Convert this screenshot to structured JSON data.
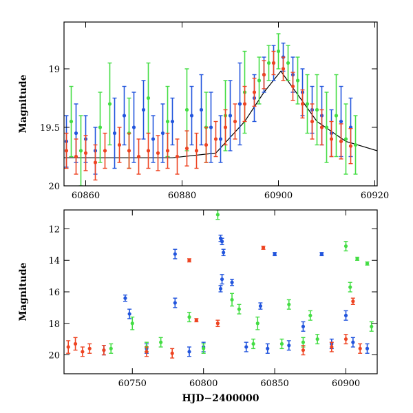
{
  "chart_data": [
    {
      "type": "scatter",
      "title": "",
      "xlabel": "",
      "ylabel": "Magnitude",
      "xlim": [
        60855.5,
        60920.5
      ],
      "ylim": [
        20.0,
        18.6
      ],
      "y_inverted": true,
      "xticks": [
        60860,
        60880,
        60900,
        60920
      ],
      "yticks": [
        19,
        19.5,
        20
      ],
      "ytick_labels": [
        "19",
        "19.5",
        "20"
      ],
      "model_curve": {
        "color": "#000000",
        "x": [
          60855.5,
          60866,
          60878,
          60887,
          60893,
          60897,
          60900.5,
          60904,
          60908,
          60914,
          60920.5
        ],
        "y": [
          19.76,
          19.76,
          19.76,
          19.72,
          19.45,
          19.2,
          19.02,
          19.22,
          19.45,
          19.62,
          19.7
        ]
      },
      "series": [
        {
          "color": "#2255dd",
          "points": [
            [
              60856,
              19.62,
              0.22
            ],
            [
              60858,
              19.55,
              0.25
            ],
            [
              60860,
              19.6,
              0.2
            ],
            [
              60862,
              19.7,
              0.2
            ],
            [
              60866,
              19.55,
              0.3
            ],
            [
              60868,
              19.4,
              0.25
            ],
            [
              60870,
              19.5,
              0.3
            ],
            [
              60872,
              19.35,
              0.25
            ],
            [
              60874,
              19.6,
              0.2
            ],
            [
              60876,
              19.55,
              0.25
            ],
            [
              60878,
              19.45,
              0.2
            ],
            [
              60882,
              19.4,
              0.25
            ],
            [
              60884,
              19.35,
              0.3
            ],
            [
              60886,
              19.5,
              0.3
            ],
            [
              60888,
              19.6,
              0.2
            ],
            [
              60890,
              19.4,
              0.3
            ],
            [
              60892,
              19.3,
              0.35
            ],
            [
              60895,
              19.25,
              0.2
            ],
            [
              60897,
              19.05,
              0.15
            ],
            [
              60899,
              18.95,
              0.15
            ],
            [
              60901,
              18.9,
              0.12
            ],
            [
              60903,
              19.05,
              0.15
            ],
            [
              60905,
              19.2,
              0.2
            ],
            [
              60907,
              19.35,
              0.2
            ],
            [
              60909,
              19.4,
              0.25
            ],
            [
              60911,
              19.55,
              0.2
            ],
            [
              60913,
              19.45,
              0.3
            ],
            [
              60915,
              19.5,
              0.25
            ]
          ]
        },
        {
          "color": "#44dd44",
          "points": [
            [
              60857,
              19.45,
              0.3
            ],
            [
              60859,
              19.7,
              0.3
            ],
            [
              60863,
              19.5,
              0.3
            ],
            [
              60865,
              19.3,
              0.35
            ],
            [
              60869,
              19.55,
              0.3
            ],
            [
              60873,
              19.25,
              0.3
            ],
            [
              60877,
              19.45,
              0.3
            ],
            [
              60881,
              19.35,
              0.35
            ],
            [
              60885,
              19.5,
              0.3
            ],
            [
              60889,
              19.4,
              0.3
            ],
            [
              60893,
              19.2,
              0.35
            ],
            [
              60896,
              19.1,
              0.2
            ],
            [
              60898,
              18.95,
              0.15
            ],
            [
              60900,
              18.85,
              0.15
            ],
            [
              60902,
              18.95,
              0.15
            ],
            [
              60904,
              19.1,
              0.2
            ],
            [
              60906,
              19.3,
              0.25
            ],
            [
              60908,
              19.35,
              0.3
            ],
            [
              60910,
              19.5,
              0.3
            ],
            [
              60912,
              19.4,
              0.35
            ],
            [
              60914,
              19.6,
              0.3
            ],
            [
              60916,
              19.65,
              0.25
            ]
          ]
        },
        {
          "color": "#ee4422",
          "points": [
            [
              60856,
              19.7,
              0.15
            ],
            [
              60858,
              19.75,
              0.15
            ],
            [
              60860,
              19.72,
              0.15
            ],
            [
              60862,
              19.8,
              0.15
            ],
            [
              60864,
              19.7,
              0.15
            ],
            [
              60867,
              19.65,
              0.15
            ],
            [
              60869,
              19.7,
              0.15
            ],
            [
              60871,
              19.75,
              0.15
            ],
            [
              60873,
              19.7,
              0.15
            ],
            [
              60875,
              19.72,
              0.15
            ],
            [
              60877,
              19.7,
              0.15
            ],
            [
              60879,
              19.75,
              0.15
            ],
            [
              60881,
              19.68,
              0.15
            ],
            [
              60883,
              19.7,
              0.15
            ],
            [
              60885,
              19.65,
              0.15
            ],
            [
              60887,
              19.6,
              0.15
            ],
            [
              60889,
              19.5,
              0.15
            ],
            [
              60891,
              19.45,
              0.15
            ],
            [
              60893,
              19.3,
              0.15
            ],
            [
              60895,
              19.2,
              0.12
            ],
            [
              60897,
              19.05,
              0.12
            ],
            [
              60899,
              18.95,
              0.1
            ],
            [
              60901,
              19.0,
              0.1
            ],
            [
              60903,
              19.15,
              0.12
            ],
            [
              60905,
              19.3,
              0.12
            ],
            [
              60907,
              19.45,
              0.15
            ],
            [
              60909,
              19.5,
              0.15
            ],
            [
              60911,
              19.6,
              0.15
            ],
            [
              60913,
              19.62,
              0.15
            ],
            [
              60915,
              19.66,
              0.15
            ]
          ]
        }
      ]
    },
    {
      "type": "scatter",
      "title": "",
      "xlabel": "HJD−2400000",
      "ylabel": "Magnitude",
      "xlim": [
        60702,
        60922
      ],
      "ylim": [
        21.2,
        10.8
      ],
      "y_inverted": true,
      "xticks": [
        60750,
        60800,
        60850,
        60900
      ],
      "yticks": [
        12,
        14,
        16,
        18,
        20
      ],
      "series": [
        {
          "color": "#2255dd",
          "points": [
            [
              60730,
              19.7,
              0.3
            ],
            [
              60745,
              16.4,
              0.2
            ],
            [
              60748,
              17.4,
              0.3
            ],
            [
              60760,
              19.6,
              0.3
            ],
            [
              60780,
              13.6,
              0.3
            ],
            [
              60780,
              16.7,
              0.3
            ],
            [
              60790,
              19.8,
              0.3
            ],
            [
              60800,
              19.5,
              0.3
            ],
            [
              60812,
              12.6,
              0.2
            ],
            [
              60813,
              12.8,
              0.2
            ],
            [
              60814,
              13.5,
              0.2
            ],
            [
              60813,
              15.2,
              0.3
            ],
            [
              60812,
              15.8,
              0.2
            ],
            [
              60820,
              15.4,
              0.2
            ],
            [
              60830,
              19.5,
              0.3
            ],
            [
              60840,
              16.9,
              0.2
            ],
            [
              60845,
              19.6,
              0.3
            ],
            [
              60850,
              13.6,
              0.1
            ],
            [
              60860,
              19.4,
              0.3
            ],
            [
              60870,
              18.2,
              0.3
            ],
            [
              60883,
              13.6,
              0.1
            ],
            [
              60890,
              19.3,
              0.3
            ],
            [
              60900,
              17.5,
              0.3
            ],
            [
              60905,
              19.2,
              0.3
            ],
            [
              60915,
              19.6,
              0.3
            ]
          ]
        },
        {
          "color": "#44dd44",
          "points": [
            [
              60735,
              19.6,
              0.3
            ],
            [
              60750,
              18.0,
              0.4
            ],
            [
              60760,
              19.5,
              0.3
            ],
            [
              60770,
              19.2,
              0.3
            ],
            [
              60790,
              17.6,
              0.3
            ],
            [
              60800,
              19.6,
              0.3
            ],
            [
              60810,
              11.1,
              0.3
            ],
            [
              60820,
              16.5,
              0.4
            ],
            [
              60825,
              17.1,
              0.3
            ],
            [
              60835,
              19.3,
              0.3
            ],
            [
              60838,
              18.0,
              0.4
            ],
            [
              60855,
              19.3,
              0.3
            ],
            [
              60860,
              16.8,
              0.3
            ],
            [
              60870,
              19.2,
              0.3
            ],
            [
              60875,
              17.5,
              0.3
            ],
            [
              60880,
              19.0,
              0.3
            ],
            [
              60900,
              13.1,
              0.3
            ],
            [
              60903,
              15.7,
              0.3
            ],
            [
              60908,
              13.9,
              0.1
            ],
            [
              60915,
              14.2,
              0.1
            ],
            [
              60918,
              18.2,
              0.3
            ]
          ]
        },
        {
          "color": "#ee4422",
          "points": [
            [
              60705,
              19.5,
              0.4
            ],
            [
              60710,
              19.3,
              0.4
            ],
            [
              60715,
              19.8,
              0.3
            ],
            [
              60720,
              19.6,
              0.3
            ],
            [
              60730,
              19.7,
              0.3
            ],
            [
              60760,
              19.8,
              0.3
            ],
            [
              60778,
              19.9,
              0.3
            ],
            [
              60790,
              14.0,
              0.1
            ],
            [
              60795,
              17.8,
              0.1
            ],
            [
              60810,
              18.0,
              0.2
            ],
            [
              60842,
              13.2,
              0.1
            ],
            [
              60870,
              19.7,
              0.3
            ],
            [
              60890,
              19.5,
              0.3
            ],
            [
              60900,
              19.0,
              0.3
            ],
            [
              60905,
              16.6,
              0.2
            ],
            [
              60910,
              19.6,
              0.3
            ]
          ]
        }
      ]
    }
  ]
}
